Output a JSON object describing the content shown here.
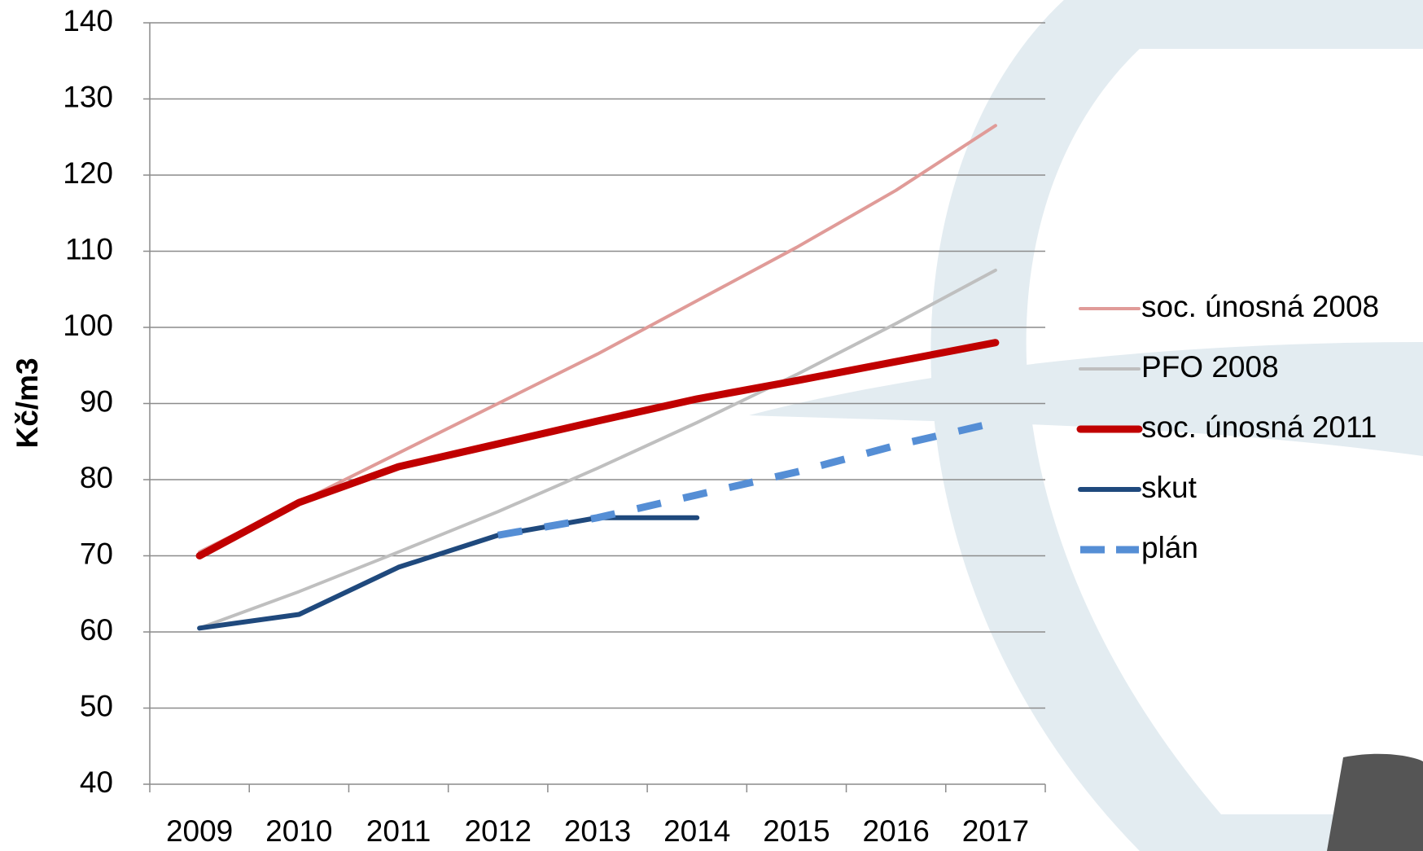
{
  "chart_data": {
    "type": "line",
    "y_label": "Kč/m3",
    "categories": [
      "2009",
      "2010",
      "2011",
      "2012",
      "2013",
      "2014",
      "2015",
      "2016",
      "2017"
    ],
    "series": [
      {
        "name": "soc. únosná 2008",
        "color": "#e09b98",
        "width": 4,
        "dash": false,
        "values": [
          70.5,
          77,
          83.5,
          90,
          96.5,
          103.5,
          110.5,
          118,
          126.5
        ]
      },
      {
        "name": "PFO 2008",
        "color": "#bfbfbf",
        "width": 4,
        "dash": false,
        "values": [
          60.5,
          65.3,
          70.5,
          75.8,
          81.5,
          87.5,
          93.8,
          100.5,
          107.5
        ]
      },
      {
        "name": "soc. únosná 2011",
        "color": "#c00000",
        "width": 9,
        "dash": false,
        "values": [
          70,
          77,
          81.7,
          84.7,
          87.7,
          90.6,
          93,
          95.5,
          98
        ]
      },
      {
        "name": "skut",
        "color": "#1f497d",
        "width": 6,
        "dash": false,
        "values": [
          60.5,
          62.3,
          68.5,
          72.7,
          75,
          75,
          null,
          null,
          null
        ]
      },
      {
        "name": "plán",
        "color": "#558ed5",
        "width": 9,
        "dash": true,
        "values": [
          null,
          null,
          null,
          72.7,
          75,
          78,
          81,
          84.5,
          87.5
        ]
      }
    ],
    "ylim": [
      40,
      140
    ],
    "yticks": [
      40,
      50,
      60,
      70,
      80,
      90,
      100,
      110,
      120,
      130,
      140
    ],
    "grid": true,
    "legend": "right"
  }
}
